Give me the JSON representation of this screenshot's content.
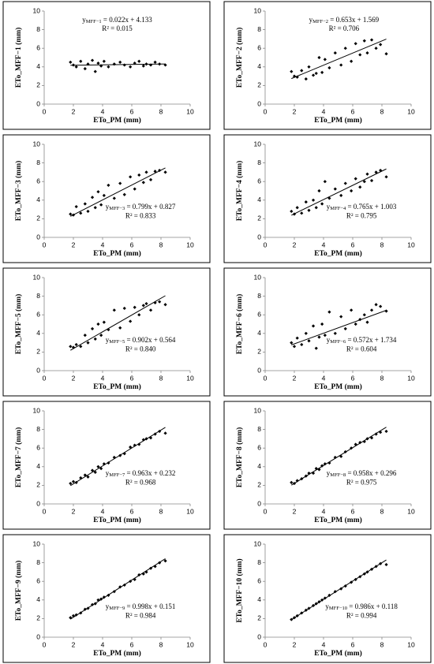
{
  "chart_data": [
    {
      "type": "scatter",
      "y_label": "ETo_MFF−1 (mm)",
      "x_label": "ETo_PM (mm)",
      "color": "#000000",
      "xlim": [
        0,
        10
      ],
      "ylim": [
        0,
        10
      ],
      "xticks": [
        0,
        2,
        4,
        6,
        8,
        10
      ],
      "yticks": [
        0,
        2,
        4,
        6,
        8,
        10
      ],
      "x": [
        1.8,
        2.0,
        2.2,
        2.5,
        2.8,
        3.0,
        3.3,
        3.5,
        3.7,
        3.9,
        4.1,
        4.4,
        4.8,
        5.2,
        5.5,
        5.9,
        6.2,
        6.5,
        6.8,
        7.0,
        7.3,
        7.6,
        7.9,
        8.3
      ],
      "y": [
        4.5,
        4.2,
        4.0,
        4.6,
        3.8,
        4.3,
        4.7,
        3.5,
        4.4,
        4.1,
        4.6,
        4.0,
        4.3,
        4.5,
        4.2,
        4.0,
        4.4,
        4.6,
        4.1,
        4.3,
        4.2,
        4.5,
        4.3,
        4.2
      ],
      "slope": 0.022,
      "intercept": 4.133,
      "equation_y": "y",
      "equation_subscript": "MFF−1",
      "equation": " = 0.022x + 4.133",
      "r2": "R² = 0.015"
    },
    {
      "type": "scatter",
      "y_label": "ETo_MFF−2 (mm)",
      "x_label": "ETo_PM (mm)",
      "color": "#000000",
      "xlim": [
        0,
        10
      ],
      "ylim": [
        0,
        10
      ],
      "xticks": [
        0,
        2,
        4,
        6,
        8,
        10
      ],
      "yticks": [
        0,
        2,
        4,
        6,
        8,
        10
      ],
      "x": [
        1.8,
        2.0,
        2.2,
        2.5,
        2.8,
        3.0,
        3.3,
        3.5,
        3.7,
        3.9,
        4.1,
        4.4,
        4.8,
        5.2,
        5.5,
        5.9,
        6.2,
        6.5,
        6.8,
        7.0,
        7.3,
        7.6,
        7.9,
        8.3
      ],
      "y": [
        3.5,
        3.0,
        2.9,
        3.6,
        2.7,
        4.0,
        3.1,
        3.3,
        5.0,
        3.4,
        4.8,
        3.9,
        5.5,
        4.2,
        6.0,
        4.6,
        6.5,
        5.3,
        6.8,
        5.5,
        6.9,
        6.0,
        6.4,
        5.4
      ],
      "slope": 0.653,
      "intercept": 1.569,
      "equation_y": "y",
      "equation_subscript": "MFF−2",
      "equation": " = 0.653x + 1.569",
      "r2": "R² = 0.706"
    },
    {
      "type": "scatter",
      "y_label": "ETo_MFF−3 (mm)",
      "x_label": "ETo_PM (mm)",
      "color": "#000000",
      "xlim": [
        0,
        10
      ],
      "ylim": [
        0,
        10
      ],
      "xticks": [
        0,
        2,
        4,
        6,
        8,
        10
      ],
      "yticks": [
        0,
        2,
        4,
        6,
        8,
        10
      ],
      "x": [
        1.8,
        2.0,
        2.2,
        2.5,
        2.8,
        3.0,
        3.3,
        3.5,
        3.7,
        3.9,
        4.1,
        4.4,
        4.8,
        5.2,
        5.5,
        5.9,
        6.2,
        6.5,
        6.8,
        7.0,
        7.3,
        7.6,
        7.9,
        8.3
      ],
      "y": [
        2.5,
        2.4,
        3.3,
        2.6,
        3.6,
        2.8,
        4.3,
        3.2,
        4.9,
        3.5,
        4.5,
        5.6,
        4.2,
        5.8,
        4.6,
        6.5,
        5.2,
        6.7,
        5.9,
        7.0,
        6.2,
        7.1,
        7.2,
        7.0
      ],
      "slope": 0.799,
      "intercept": 0.827,
      "equation_y": "y",
      "equation_subscript": "MFF−3",
      "equation": " = 0.799x + 0.827",
      "r2": "R² = 0.833"
    },
    {
      "type": "scatter",
      "y_label": "ETo_MFF−4 (mm)",
      "x_label": "ETo_PM (mm)",
      "color": "#000000",
      "xlim": [
        0,
        10
      ],
      "ylim": [
        0,
        10
      ],
      "xticks": [
        0,
        2,
        4,
        6,
        8,
        10
      ],
      "yticks": [
        0,
        2,
        4,
        6,
        8,
        10
      ],
      "x": [
        1.8,
        2.0,
        2.2,
        2.5,
        2.8,
        3.0,
        3.3,
        3.5,
        3.7,
        3.9,
        4.1,
        4.4,
        4.8,
        5.2,
        5.5,
        5.9,
        6.2,
        6.5,
        6.8,
        7.0,
        7.3,
        7.6,
        7.9,
        8.3
      ],
      "y": [
        2.8,
        2.5,
        3.2,
        2.6,
        3.8,
        2.9,
        4.0,
        3.2,
        5.0,
        3.6,
        6.0,
        4.2,
        5.2,
        4.5,
        5.8,
        5.0,
        6.3,
        5.4,
        6.0,
        6.8,
        6.1,
        7.0,
        7.2,
        6.5
      ],
      "slope": 0.765,
      "intercept": 1.003,
      "equation_y": "y",
      "equation_subscript": "MFF−4",
      "equation": " = 0.765x + 1.003",
      "r2": "R² = 0.795"
    },
    {
      "type": "scatter",
      "y_label": "ETo_MFF−5 (mm)",
      "x_label": "ETo_PM (mm)",
      "color": "#000000",
      "xlim": [
        0,
        10
      ],
      "ylim": [
        0,
        10
      ],
      "xticks": [
        0,
        2,
        4,
        6,
        8,
        10
      ],
      "yticks": [
        0,
        2,
        4,
        6,
        8,
        10
      ],
      "x": [
        1.8,
        2.0,
        2.2,
        2.5,
        2.8,
        3.0,
        3.3,
        3.5,
        3.7,
        3.9,
        4.1,
        4.4,
        4.8,
        5.2,
        5.5,
        5.9,
        6.2,
        6.5,
        6.8,
        7.0,
        7.3,
        7.6,
        7.9,
        8.3
      ],
      "y": [
        2.6,
        2.5,
        2.8,
        2.6,
        3.8,
        3.0,
        4.5,
        3.4,
        5.0,
        3.8,
        5.2,
        4.4,
        6.5,
        4.6,
        6.7,
        5.3,
        6.8,
        6.0,
        7.0,
        7.2,
        6.5,
        7.3,
        7.4,
        7.1
      ],
      "slope": 0.902,
      "intercept": 0.564,
      "equation_y": "y",
      "equation_subscript": "MFF−5",
      "equation": " = 0.902x + 0.564",
      "r2": "R² = 0.840"
    },
    {
      "type": "scatter",
      "y_label": "ETo_MFF−6 (mm)",
      "x_label": "ETo_PM (mm)",
      "color": "#000000",
      "xlim": [
        0,
        10
      ],
      "ylim": [
        0,
        10
      ],
      "xticks": [
        0,
        2,
        4,
        6,
        8,
        10
      ],
      "yticks": [
        0,
        2,
        4,
        6,
        8,
        10
      ],
      "x": [
        1.8,
        2.0,
        2.2,
        2.5,
        2.8,
        3.0,
        3.3,
        3.5,
        3.7,
        3.9,
        4.1,
        4.4,
        4.8,
        5.2,
        5.5,
        5.9,
        6.2,
        6.5,
        6.8,
        7.0,
        7.3,
        7.6,
        7.9,
        8.3
      ],
      "y": [
        3.0,
        2.6,
        3.5,
        2.8,
        4.0,
        3.2,
        4.8,
        2.4,
        3.6,
        5.0,
        3.8,
        6.3,
        4.0,
        5.8,
        4.5,
        6.5,
        5.0,
        5.5,
        6.0,
        5.2,
        6.5,
        7.1,
        6.9,
        6.4
      ],
      "slope": 0.572,
      "intercept": 1.734,
      "equation_y": "y",
      "equation_subscript": "MFF−6",
      "equation": " = 0.572x + 1.734",
      "r2": "R² = 0.604"
    },
    {
      "type": "scatter",
      "y_label": "ETo_MFF−7 (mm)",
      "x_label": "ETo_PM (mm)",
      "color": "#000000",
      "xlim": [
        0,
        10
      ],
      "ylim": [
        0,
        10
      ],
      "xticks": [
        0,
        2,
        4,
        6,
        8,
        10
      ],
      "yticks": [
        0,
        2,
        4,
        6,
        8,
        10
      ],
      "x": [
        1.8,
        2.0,
        2.2,
        2.5,
        2.8,
        3.0,
        3.3,
        3.5,
        3.7,
        3.9,
        4.1,
        4.4,
        4.8,
        5.2,
        5.5,
        5.9,
        6.2,
        6.5,
        6.8,
        7.0,
        7.3,
        7.6,
        7.9,
        8.3
      ],
      "y": [
        2.2,
        2.4,
        2.3,
        2.8,
        3.1,
        2.9,
        3.6,
        3.4,
        4.0,
        3.8,
        4.3,
        4.4,
        5.0,
        5.2,
        5.4,
        6.1,
        6.3,
        6.4,
        6.9,
        7.0,
        7.1,
        7.5,
        7.8,
        7.6
      ],
      "slope": 0.963,
      "intercept": 0.232,
      "equation_y": "y",
      "equation_subscript": "MFF−7",
      "equation": " = 0.963x + 0.232",
      "r2": "R² = 0.968"
    },
    {
      "type": "scatter",
      "y_label": "ETo_MFF−8 (mm)",
      "x_label": "ETo_PM (mm)",
      "color": "#000000",
      "xlim": [
        0,
        10
      ],
      "ylim": [
        0,
        10
      ],
      "xticks": [
        0,
        2,
        4,
        6,
        8,
        10
      ],
      "yticks": [
        0,
        2,
        4,
        6,
        8,
        10
      ],
      "x": [
        1.8,
        2.0,
        2.2,
        2.5,
        2.8,
        3.0,
        3.3,
        3.5,
        3.7,
        3.9,
        4.1,
        4.4,
        4.8,
        5.2,
        5.5,
        5.9,
        6.2,
        6.5,
        6.8,
        7.0,
        7.3,
        7.6,
        7.9,
        8.3
      ],
      "y": [
        2.3,
        2.2,
        2.5,
        2.7,
        3.0,
        3.3,
        3.3,
        3.8,
        3.7,
        4.1,
        4.3,
        4.4,
        5.0,
        5.1,
        5.6,
        6.0,
        6.4,
        6.6,
        6.7,
        7.0,
        7.1,
        7.5,
        7.7,
        7.8
      ],
      "slope": 0.958,
      "intercept": 0.296,
      "equation_y": "y",
      "equation_subscript": "MFF−8",
      "equation": " = 0.958x + 0.296",
      "r2": "R² = 0.975"
    },
    {
      "type": "scatter",
      "y_label": "ETo_MFF−9 (mm)",
      "x_label": "ETo_PM (mm)",
      "color": "#000000",
      "xlim": [
        0,
        10
      ],
      "ylim": [
        0,
        10
      ],
      "xticks": [
        0,
        2,
        4,
        6,
        8,
        10
      ],
      "yticks": [
        0,
        2,
        4,
        6,
        8,
        10
      ],
      "x": [
        1.8,
        2.0,
        2.2,
        2.5,
        2.8,
        3.0,
        3.3,
        3.5,
        3.7,
        3.9,
        4.1,
        4.4,
        4.8,
        5.2,
        5.5,
        5.9,
        6.2,
        6.5,
        6.8,
        7.0,
        7.3,
        7.6,
        7.9,
        8.3
      ],
      "y": [
        2.1,
        2.3,
        2.4,
        2.6,
        3.0,
        3.1,
        3.5,
        3.6,
        4.0,
        4.1,
        4.3,
        4.5,
        4.9,
        5.4,
        5.6,
        6.0,
        6.2,
        6.7,
        6.8,
        7.0,
        7.4,
        7.6,
        8.0,
        8.2
      ],
      "slope": 0.998,
      "intercept": 0.151,
      "equation_y": "y",
      "equation_subscript": "MFF−9",
      "equation": " = 0.998x + 0.151",
      "r2": "R² = 0.984"
    },
    {
      "type": "scatter",
      "y_label": "ETo_MFF−10 (mm)",
      "x_label": "ETo_PM (mm)",
      "color": "#000000",
      "xlim": [
        0,
        10
      ],
      "ylim": [
        0,
        10
      ],
      "xticks": [
        0,
        2,
        4,
        6,
        8,
        10
      ],
      "yticks": [
        0,
        2,
        4,
        6,
        8,
        10
      ],
      "x": [
        1.8,
        2.0,
        2.2,
        2.5,
        2.8,
        3.0,
        3.3,
        3.5,
        3.7,
        3.9,
        4.1,
        4.4,
        4.8,
        5.2,
        5.5,
        5.9,
        6.2,
        6.5,
        6.8,
        7.0,
        7.3,
        7.6,
        7.9,
        8.3
      ],
      "y": [
        1.9,
        2.1,
        2.3,
        2.6,
        2.9,
        3.1,
        3.4,
        3.6,
        3.8,
        4.0,
        4.2,
        4.5,
        4.9,
        5.2,
        5.5,
        5.9,
        6.2,
        6.5,
        6.8,
        7.0,
        7.3,
        7.6,
        7.9,
        7.8
      ],
      "slope": 0.986,
      "intercept": 0.118,
      "equation_y": "y",
      "equation_subscript": "MFF−10",
      "equation": " = 0.986x + 0.118",
      "r2": "R² = 0.994"
    }
  ]
}
